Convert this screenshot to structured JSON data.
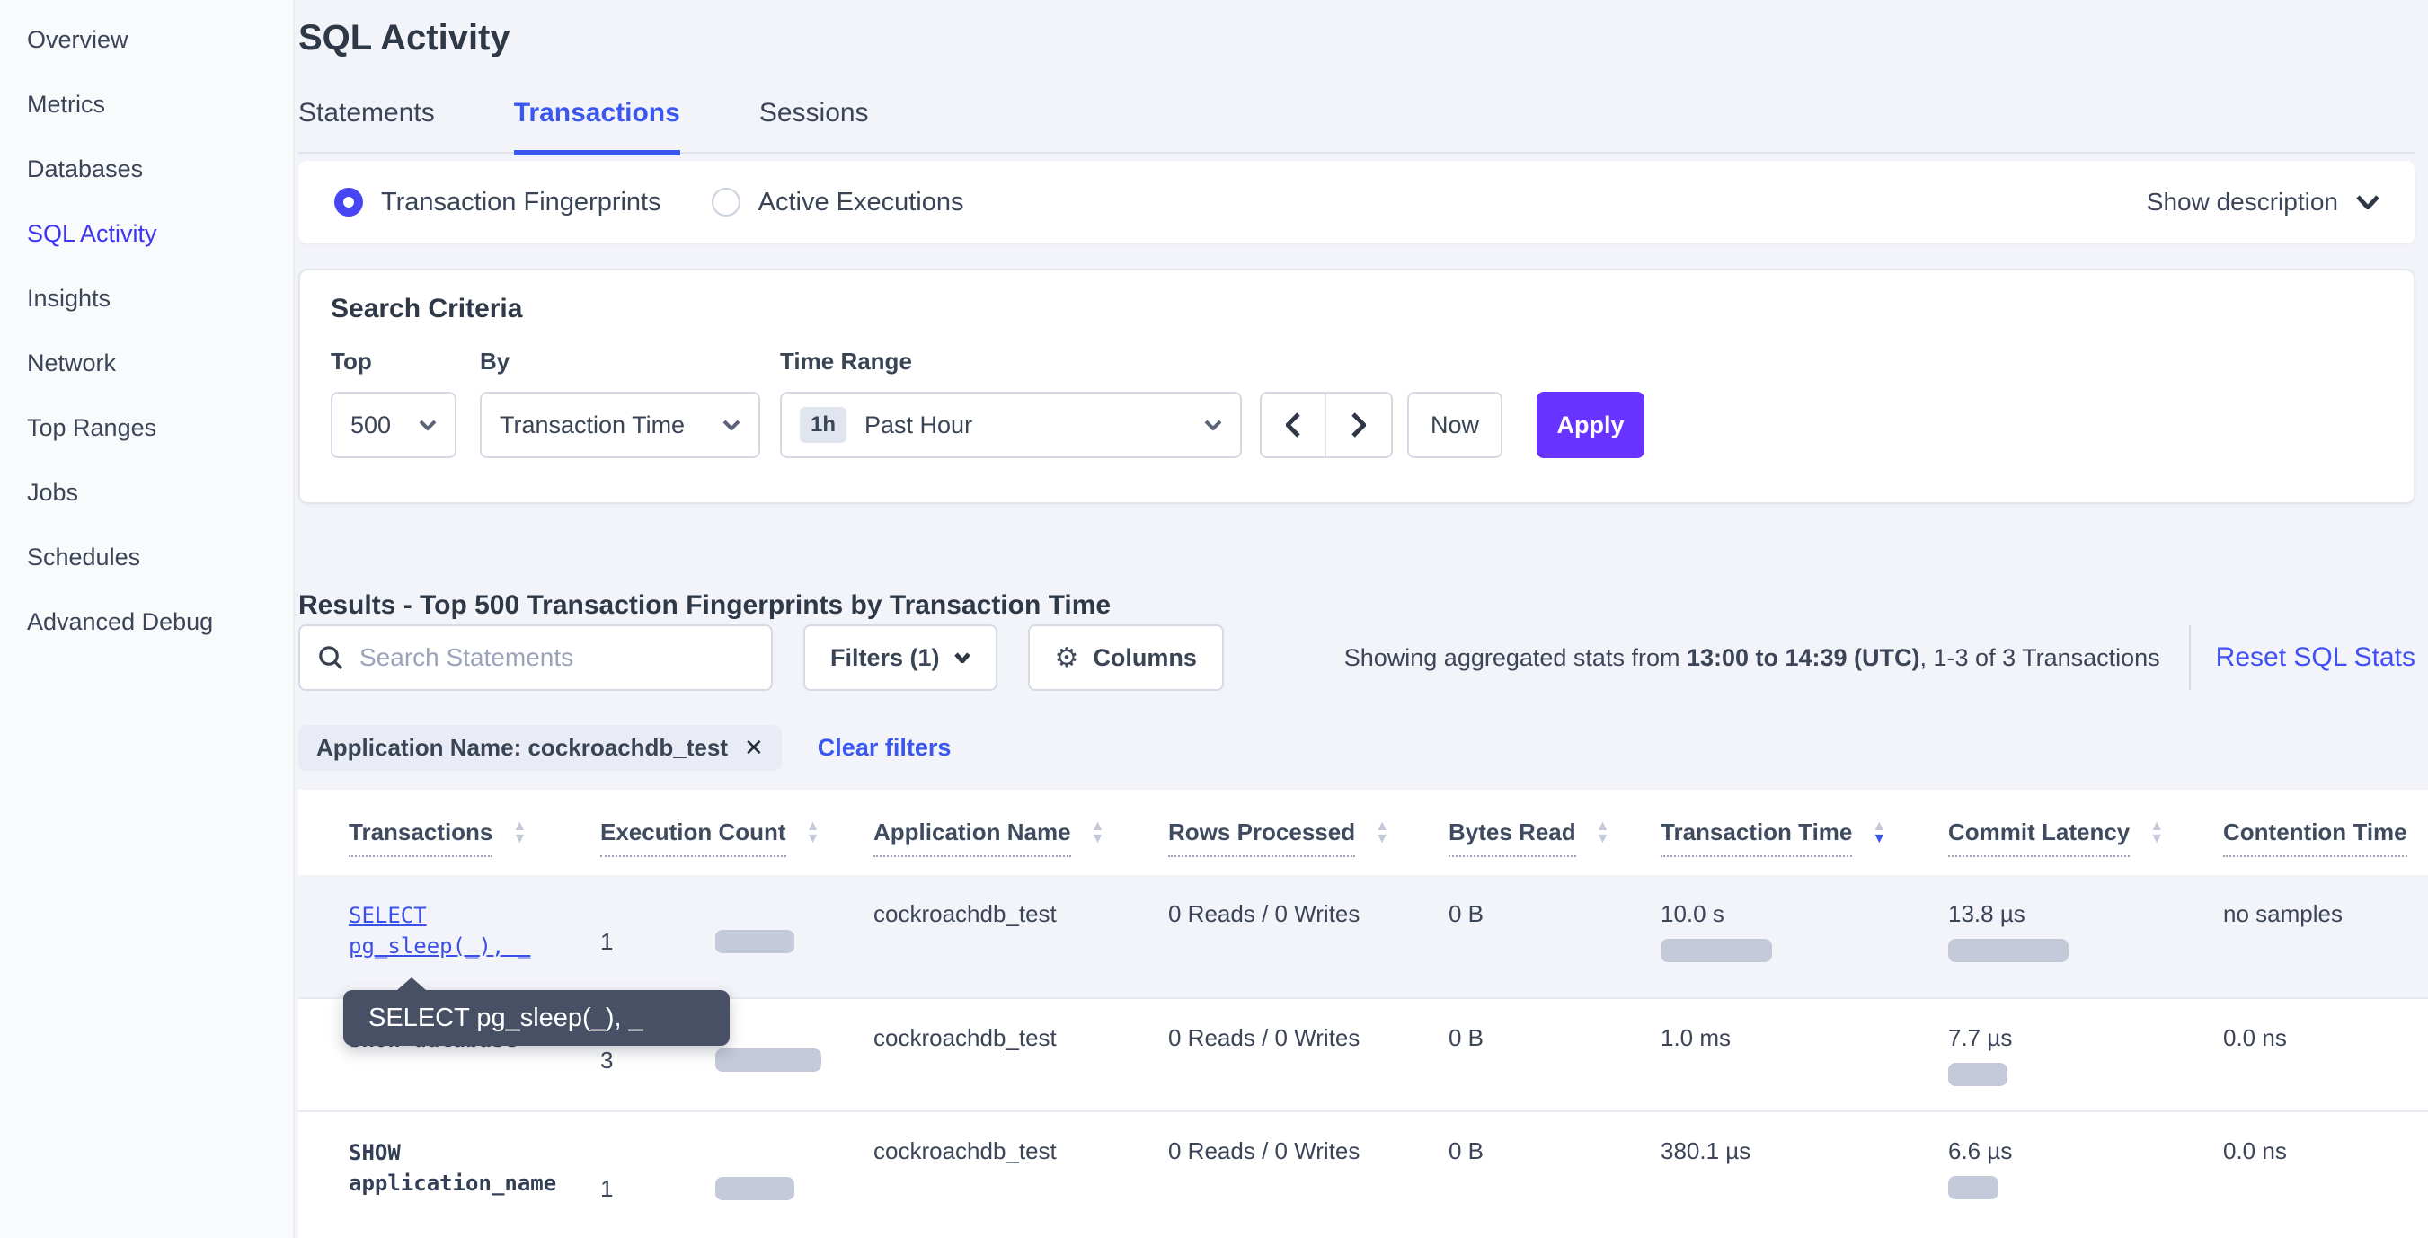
{
  "sidebar": {
    "items": [
      {
        "label": "Overview"
      },
      {
        "label": "Metrics"
      },
      {
        "label": "Databases"
      },
      {
        "label": "SQL Activity",
        "active": true
      },
      {
        "label": "Insights"
      },
      {
        "label": "Network"
      },
      {
        "label": "Top Ranges"
      },
      {
        "label": "Jobs"
      },
      {
        "label": "Schedules"
      },
      {
        "label": "Advanced Debug"
      }
    ]
  },
  "header": {
    "title": "SQL Activity",
    "tabs": [
      {
        "label": "Statements",
        "active": false
      },
      {
        "label": "Transactions",
        "active": true
      },
      {
        "label": "Sessions",
        "active": false
      }
    ]
  },
  "view_toggle": {
    "options": [
      {
        "label": "Transaction Fingerprints",
        "selected": true
      },
      {
        "label": "Active Executions",
        "selected": false
      }
    ],
    "show_description_label": "Show description"
  },
  "search_criteria": {
    "title": "Search Criteria",
    "top": {
      "label": "Top",
      "value": "500"
    },
    "by": {
      "label": "By",
      "value": "Transaction Time"
    },
    "time_range": {
      "label": "Time Range",
      "badge": "1h",
      "value": "Past Hour"
    },
    "now_label": "Now",
    "apply_label": "Apply"
  },
  "results": {
    "heading": "Results - Top 500 Transaction Fingerprints by Transaction Time",
    "search_placeholder": "Search Statements",
    "filters_label": "Filters (1)",
    "columns_label": "Columns",
    "stats_prefix": "Showing aggregated stats from ",
    "stats_bold": "13:00 to 14:39 (UTC)",
    "stats_suffix": ", 1-3 of 3 Transactions",
    "reset_label": "Reset SQL Stats",
    "filter_chip": "Application Name: cockroachdb_test",
    "clear_filters_label": "Clear filters"
  },
  "table": {
    "columns": [
      {
        "label": "Transactions",
        "sort": "none"
      },
      {
        "label": "Execution Count",
        "sort": "none"
      },
      {
        "label": "Application Name",
        "sort": "none"
      },
      {
        "label": "Rows Processed",
        "sort": "none"
      },
      {
        "label": "Bytes Read",
        "sort": "none"
      },
      {
        "label": "Transaction Time",
        "sort": "desc"
      },
      {
        "label": "Commit Latency",
        "sort": "none"
      },
      {
        "label": "Contention Time",
        "sort": "none"
      }
    ],
    "rows": [
      {
        "transaction": "SELECT pg_sleep(_), _",
        "is_link": true,
        "execution_count": "1",
        "execution_bar": "44px",
        "application_name": "cockroachdb_test",
        "rows_processed": "0 Reads / 0 Writes",
        "bytes_read": "0 B",
        "transaction_time": "10.0 s",
        "transaction_time_bar": "62px",
        "commit_latency": "13.8 µs",
        "commit_latency_bar": "67px",
        "contention_time": "no samples"
      },
      {
        "transaction": "SHOW database",
        "is_link": false,
        "execution_count": "3",
        "execution_bar": "59px",
        "application_name": "cockroachdb_test",
        "rows_processed": "0 Reads / 0 Writes",
        "bytes_read": "0 B",
        "transaction_time": "1.0 ms",
        "transaction_time_bar": "0px",
        "commit_latency": "7.7 µs",
        "commit_latency_bar": "33px",
        "contention_time": "0.0 ns"
      },
      {
        "transaction": "SHOW application_name",
        "is_link": false,
        "execution_count": "1",
        "execution_bar": "44px",
        "application_name": "cockroachdb_test",
        "rows_processed": "0 Reads / 0 Writes",
        "bytes_read": "0 B",
        "transaction_time": "380.1 µs",
        "transaction_time_bar": "0px",
        "commit_latency": "6.6 µs",
        "commit_latency_bar": "28px",
        "contention_time": "0.0 ns"
      }
    ]
  },
  "tooltip": {
    "text": "SELECT pg_sleep(_), _"
  },
  "colors": {
    "accent_blue": "#3a57f0",
    "sidebar_active": "#3d34f2",
    "radio_selected": "#4845f5",
    "apply_purple": "#6933ff",
    "bar_fill": "#c5cadb",
    "tooltip_bg": "#475064",
    "page_bg": "#f3f4f9"
  }
}
